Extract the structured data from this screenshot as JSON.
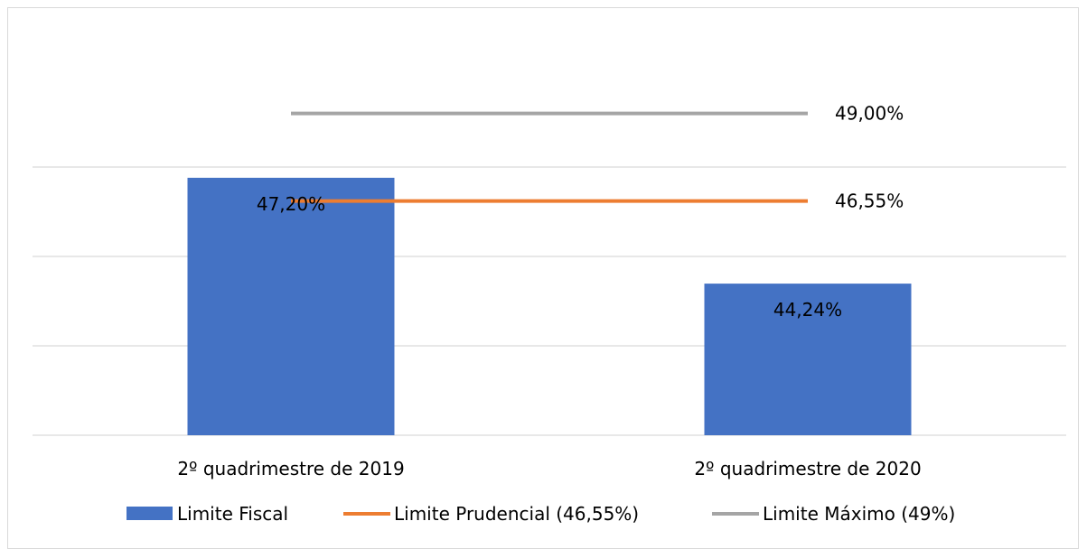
{
  "chart_data": {
    "type": "bar",
    "title": "",
    "xlabel": "",
    "ylabel": "",
    "categories": [
      "2º quadrimestre de 2019",
      "2º quadrimestre de 2020"
    ],
    "ylim": [
      40,
      50
    ],
    "grid": true,
    "legend_position": "bottom",
    "series": [
      {
        "name": "Limite Fiscal",
        "type": "bar",
        "color": "#4472c4",
        "values": [
          47.2,
          44.24
        ],
        "data_labels": [
          "47,20%",
          "44,24%"
        ]
      },
      {
        "name": "Limite Prudencial (46,55%)",
        "type": "line",
        "color": "#ed7d31",
        "values": [
          46.55,
          46.55
        ],
        "data_labels": [
          "",
          "46,55%"
        ]
      },
      {
        "name": "Limite Máximo (49%)",
        "type": "line",
        "color": "#a5a5a5",
        "values": [
          49.0,
          49.0
        ],
        "data_labels": [
          "",
          "49,00%"
        ]
      }
    ]
  }
}
